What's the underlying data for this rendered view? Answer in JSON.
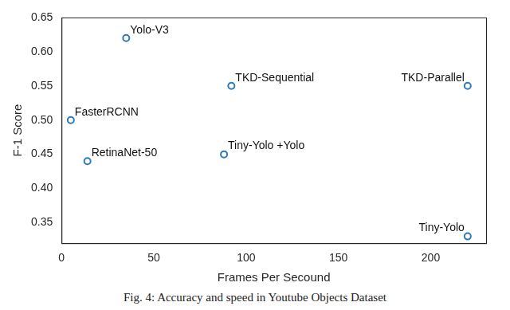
{
  "chart_data": {
    "type": "scatter",
    "x_label": "Frames Per Secound",
    "y_label": "F-1 Score",
    "caption": "Fig. 4: Accuracy and speed in Youtube Objects Dataset",
    "x": [
      5,
      14,
      35,
      88,
      92,
      220,
      220
    ],
    "values": [
      0.5,
      0.44,
      0.62,
      0.45,
      0.55,
      0.55,
      0.33
    ],
    "annotations": [
      "FasterRCNN",
      "RetinaNet-50",
      "Yolo-V3",
      "Tiny-Yolo +Yolo",
      "TKD-Sequential",
      "TKD-Parallel",
      "Tiny-Yolo"
    ],
    "color": "#2f7ab9",
    "marker": "circle",
    "grid": false,
    "xlim": [
      0,
      230
    ],
    "xticks": [
      0,
      50,
      100,
      150,
      200
    ],
    "ylim": [
      0.32,
      0.65
    ],
    "yticks": [
      0.35,
      0.4,
      0.45,
      0.5,
      0.55,
      0.6,
      0.65
    ]
  }
}
